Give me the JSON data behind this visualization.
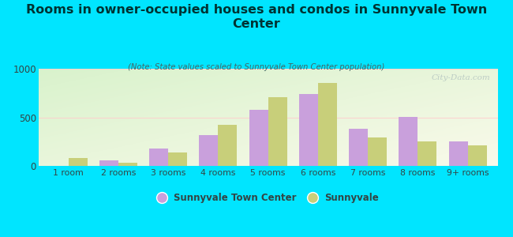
{
  "title": "Rooms in owner-occupied houses and condos in Sunnyvale Town\nCenter",
  "subtitle": "(Note: State values scaled to Sunnyvale Town Center population)",
  "categories": [
    "1 room",
    "2 rooms",
    "3 rooms",
    "4 rooms",
    "5 rooms",
    "6 rooms",
    "7 rooms",
    "8 rooms",
    "9+ rooms"
  ],
  "sunnyvale_town_center": [
    0,
    55,
    175,
    320,
    575,
    740,
    385,
    505,
    255
  ],
  "sunnyvale": [
    80,
    30,
    140,
    420,
    710,
    855,
    290,
    250,
    210
  ],
  "color_stc": "#c9a0dc",
  "color_sun": "#c8cf7a",
  "ylim": [
    0,
    1000
  ],
  "yticks": [
    0,
    500,
    1000
  ],
  "background_outer": "#00e5ff",
  "legend_label_stc": "Sunnyvale Town Center",
  "legend_label_sun": "Sunnyvale",
  "watermark": "City-Data.com",
  "bar_width": 0.38,
  "title_color": "#003333",
  "subtitle_color": "#446666"
}
